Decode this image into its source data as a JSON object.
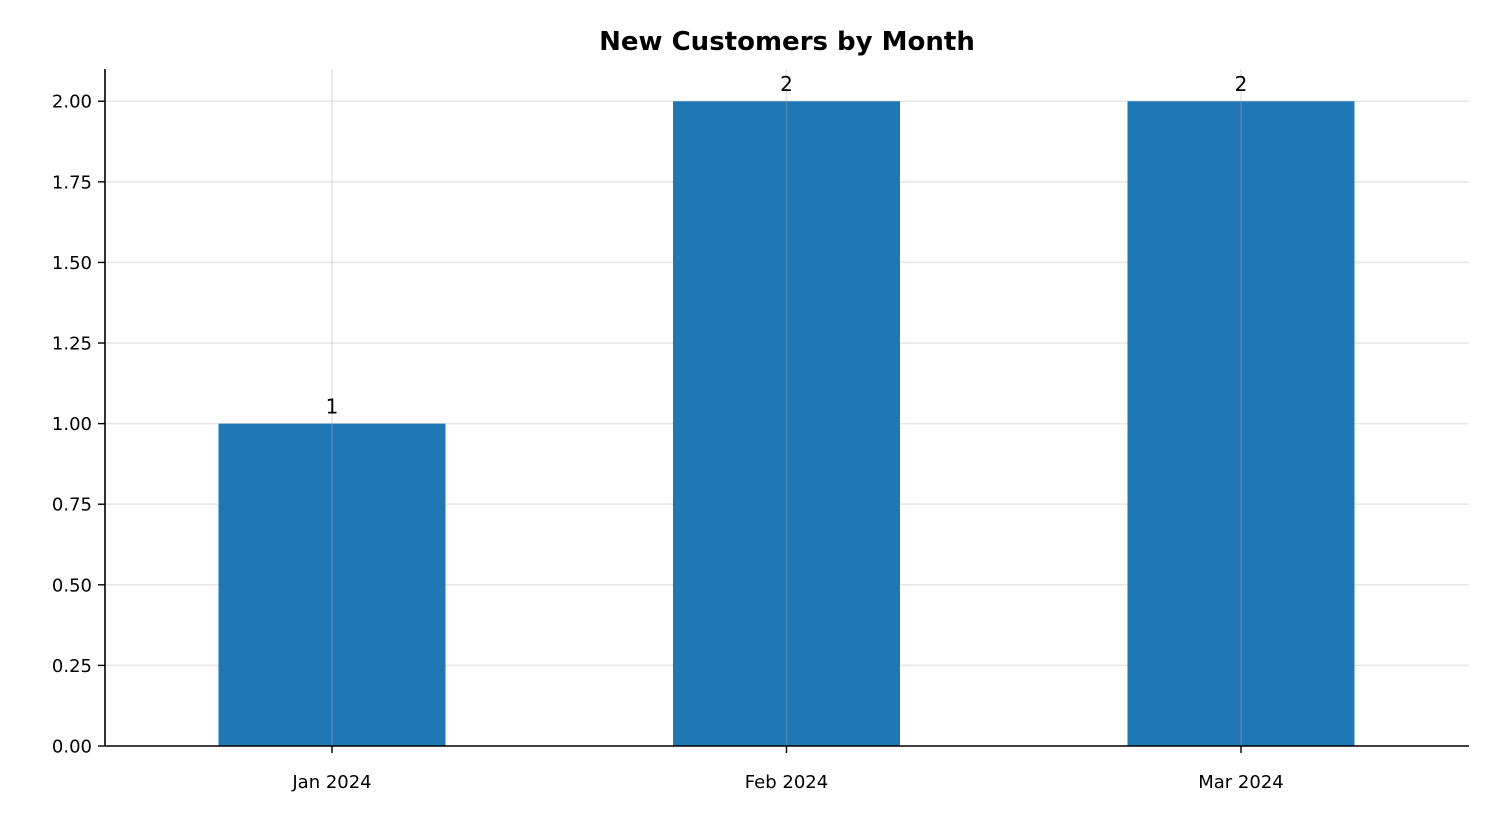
{
  "chart_data": {
    "type": "bar",
    "title": "New Customers by Month",
    "xlabel": "",
    "ylabel": "",
    "categories": [
      "Jan 2024",
      "Feb 2024",
      "Mar 2024"
    ],
    "values": [
      1,
      2,
      2
    ],
    "data_labels": [
      "1",
      "2",
      "2"
    ],
    "ylim": [
      0,
      2.1
    ],
    "yticks": [
      0,
      0.25,
      0.5,
      0.75,
      1.0,
      1.25,
      1.5,
      1.75,
      2.0
    ],
    "ytick_labels": [
      "0.00",
      "0.25",
      "0.50",
      "0.75",
      "1.00",
      "1.25",
      "1.50",
      "1.75",
      "2.00"
    ],
    "grid": true,
    "legend": "none",
    "bar_color": "#1f77b4"
  }
}
